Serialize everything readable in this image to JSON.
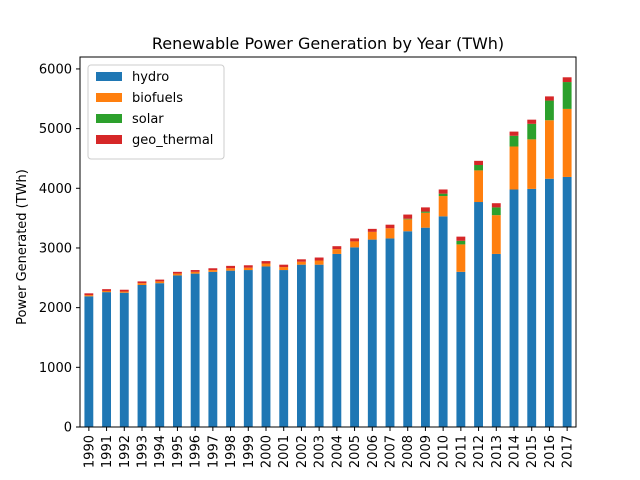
{
  "chart_data": {
    "type": "bar",
    "stacked": true,
    "title": "Renewable Power Generation by Year (TWh)",
    "xlabel": "",
    "ylabel": "Power Generated (TWh)",
    "ylim": [
      0,
      6200
    ],
    "yticks": [
      0,
      1000,
      2000,
      3000,
      4000,
      5000,
      6000
    ],
    "grid": false,
    "legend_position": "top-left",
    "categories": [
      "1990",
      "1991",
      "1992",
      "1993",
      "1994",
      "1995",
      "1996",
      "1997",
      "1998",
      "1999",
      "2000",
      "2001",
      "2002",
      "2003",
      "2004",
      "2005",
      "2006",
      "2007",
      "2008",
      "2009",
      "2010",
      "2011",
      "2012",
      "2013",
      "2014",
      "2015",
      "2016",
      "2017"
    ],
    "series": [
      {
        "name": "hydro",
        "color": "#1f77b4",
        "values": [
          2190,
          2260,
          2250,
          2380,
          2410,
          2540,
          2570,
          2600,
          2620,
          2630,
          2690,
          2630,
          2720,
          2720,
          2900,
          3010,
          3140,
          3160,
          3280,
          3340,
          3530,
          2600,
          3770,
          2900,
          3980,
          3990,
          4160,
          4190
        ]
      },
      {
        "name": "biofuels",
        "color": "#ff7f0e",
        "values": [
          20,
          20,
          20,
          30,
          30,
          30,
          30,
          30,
          40,
          40,
          50,
          50,
          50,
          70,
          80,
          100,
          130,
          170,
          200,
          250,
          340,
          460,
          530,
          650,
          720,
          830,
          980,
          1140
        ]
      },
      {
        "name": "solar",
        "color": "#2ca02c",
        "values": [
          0,
          0,
          0,
          0,
          0,
          0,
          0,
          0,
          0,
          0,
          0,
          0,
          0,
          0,
          0,
          0,
          0,
          0,
          10,
          20,
          40,
          60,
          90,
          130,
          180,
          260,
          330,
          450
        ]
      },
      {
        "name": "geo_thermal",
        "color": "#d62728",
        "values": [
          30,
          30,
          30,
          30,
          30,
          30,
          30,
          30,
          40,
          40,
          40,
          40,
          40,
          50,
          50,
          50,
          50,
          60,
          70,
          70,
          70,
          70,
          70,
          70,
          70,
          70,
          70,
          80
        ]
      }
    ]
  }
}
